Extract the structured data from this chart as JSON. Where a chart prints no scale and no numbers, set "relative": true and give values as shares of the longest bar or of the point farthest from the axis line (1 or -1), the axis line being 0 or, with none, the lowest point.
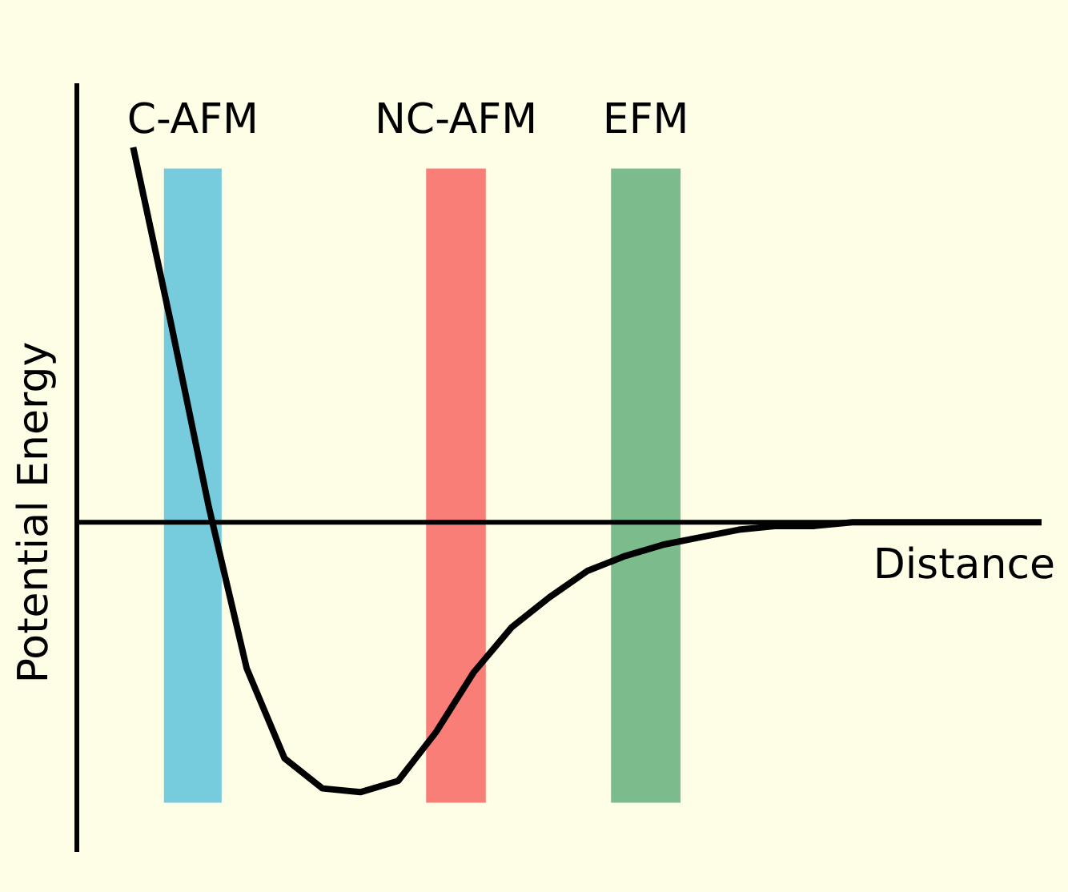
{
  "chart_data": {
    "type": "line",
    "relative": true,
    "xlabel": "Distance",
    "ylabel": "Potential Energy",
    "categories": [
      null,
      null,
      null,
      null,
      null,
      null,
      null,
      null,
      null,
      null,
      null,
      null,
      null,
      null,
      null,
      null,
      null,
      null,
      null,
      null,
      null,
      null,
      null,
      null,
      null
    ],
    "series": [
      {
        "color": "#000000",
        "values": [
          1.0,
          0.53,
          0.04,
          -0.39,
          -0.63,
          -0.71,
          -0.72,
          -0.69,
          -0.56,
          -0.4,
          -0.28,
          -0.2,
          -0.13,
          -0.09,
          -0.06,
          -0.04,
          -0.02,
          -0.01,
          -0.01,
          0,
          0,
          0,
          0,
          0,
          0
        ]
      }
    ],
    "annotations": [
      "C-AFM",
      "NC-AFM",
      "EFM"
    ],
    "grid": false
  }
}
